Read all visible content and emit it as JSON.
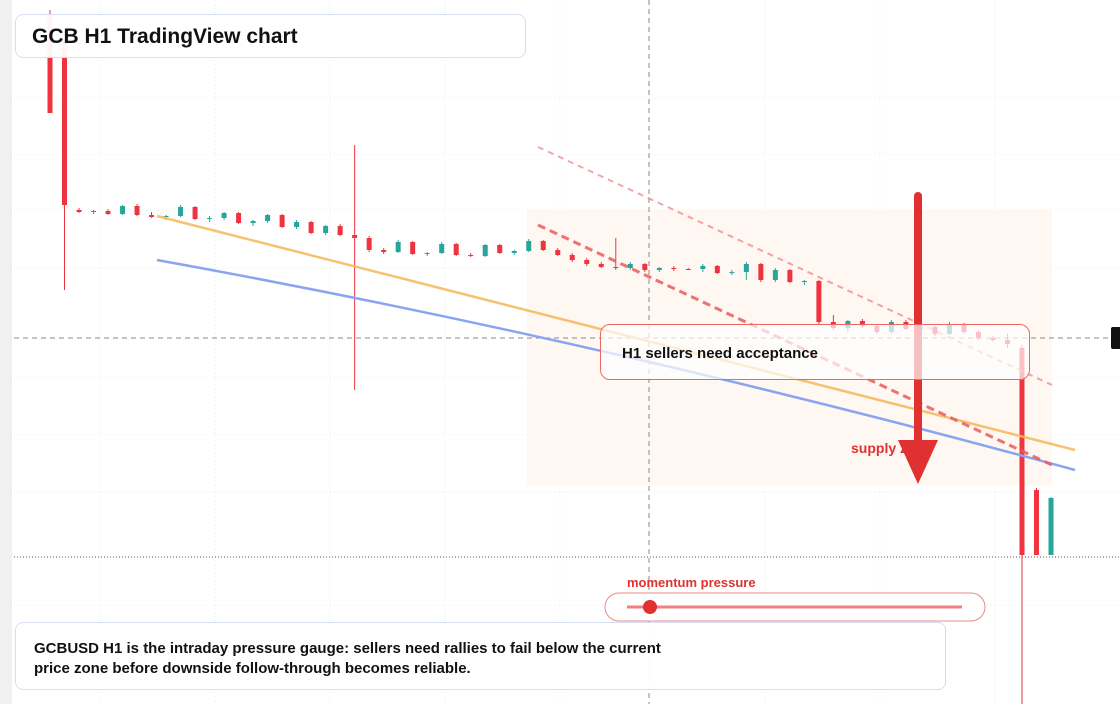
{
  "header": {
    "title": "GCB H1 TradingView chart"
  },
  "annotations": {
    "acceptance": "H1 sellers need acceptance",
    "supply": "supply zone",
    "gauge_label": "momentum pressure"
  },
  "footer": {
    "text": "GCBUSD H1 is the intraday pressure gauge: sellers need rallies to fail below the current price zone before downside follow-through becomes reliable."
  },
  "candles": [
    [
      685,
      690,
      587,
      587
    ],
    [
      660,
      660,
      410,
      495
    ],
    [
      490,
      492,
      487,
      488
    ],
    [
      488,
      490,
      486,
      489
    ],
    [
      489,
      491,
      485,
      486
    ],
    [
      486,
      495,
      485,
      494
    ],
    [
      494,
      496,
      484,
      485
    ],
    [
      485,
      488,
      482,
      483
    ],
    [
      483,
      485,
      480,
      484
    ],
    [
      484,
      495,
      483,
      493
    ],
    [
      493,
      494,
      480,
      481
    ],
    [
      481,
      484,
      478,
      482
    ],
    [
      482,
      488,
      480,
      487
    ],
    [
      487,
      488,
      476,
      477
    ],
    [
      477,
      480,
      474,
      479
    ],
    [
      479,
      486,
      477,
      485
    ],
    [
      485,
      486,
      472,
      473
    ],
    [
      473,
      480,
      471,
      478
    ],
    [
      478,
      479,
      466,
      467
    ],
    [
      467,
      475,
      465,
      474
    ],
    [
      474,
      476,
      464,
      465
    ],
    [
      465,
      555,
      310,
      462
    ],
    [
      462,
      464,
      448,
      450
    ],
    [
      450,
      452,
      446,
      448
    ],
    [
      448,
      460,
      447,
      458
    ],
    [
      458,
      459,
      445,
      446
    ],
    [
      446,
      448,
      444,
      447
    ],
    [
      447,
      458,
      446,
      456
    ],
    [
      456,
      457,
      444,
      445
    ],
    [
      445,
      447,
      443,
      444
    ],
    [
      444,
      456,
      443,
      455
    ],
    [
      455,
      456,
      446,
      447
    ],
    [
      447,
      450,
      445,
      449
    ],
    [
      449,
      461,
      448,
      459
    ],
    [
      459,
      460,
      449,
      450
    ],
    [
      450,
      452,
      444,
      445
    ],
    [
      445,
      447,
      438,
      440
    ],
    [
      440,
      442,
      434,
      436
    ],
    [
      436,
      438,
      432,
      433
    ],
    [
      433,
      462,
      430,
      432
    ],
    [
      432,
      438,
      430,
      436
    ],
    [
      436,
      437,
      428,
      430
    ],
    [
      430,
      433,
      428,
      432
    ],
    [
      432,
      434,
      429,
      431
    ],
    [
      431,
      432,
      430,
      431
    ],
    [
      431,
      436,
      428,
      434
    ],
    [
      434,
      435,
      426,
      427
    ],
    [
      427,
      430,
      425,
      428
    ],
    [
      428,
      438,
      420,
      436
    ],
    [
      436,
      437,
      418,
      420
    ],
    [
      420,
      432,
      418,
      430
    ],
    [
      430,
      431,
      417,
      418
    ],
    [
      418,
      420,
      415,
      419
    ],
    [
      419,
      420,
      375,
      378
    ],
    [
      378,
      385,
      370,
      372
    ],
    [
      372,
      380,
      368,
      379
    ],
    [
      379,
      381,
      372,
      374
    ],
    [
      374,
      376,
      366,
      368
    ],
    [
      368,
      380,
      366,
      378
    ],
    [
      378,
      380,
      370,
      371
    ],
    [
      371,
      375,
      365,
      373
    ],
    [
      373,
      374,
      364,
      366
    ],
    [
      366,
      378,
      365,
      376
    ],
    [
      376,
      377,
      366,
      368
    ],
    [
      368,
      370,
      360,
      362
    ],
    [
      362,
      364,
      358,
      360
    ],
    [
      360,
      366,
      352,
      356
    ],
    [
      352,
      355,
      -4,
      145
    ],
    [
      210,
      212,
      145,
      145
    ],
    [
      145,
      203,
      145,
      202
    ]
  ]
}
